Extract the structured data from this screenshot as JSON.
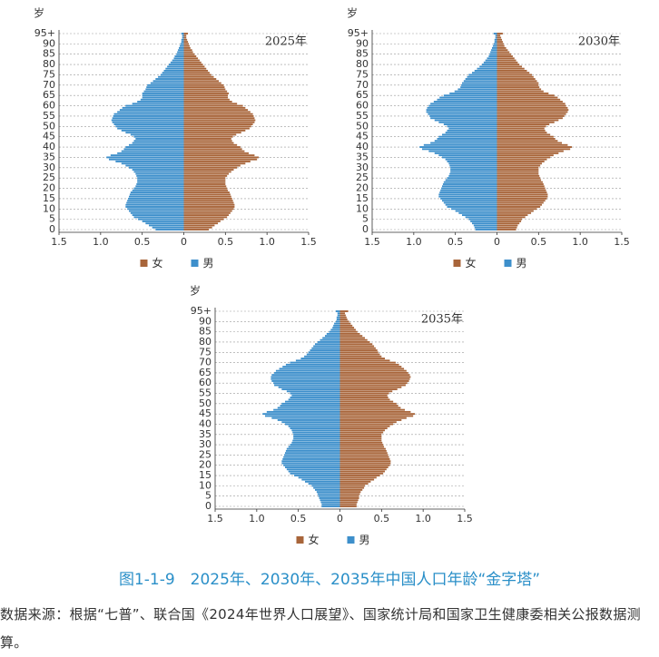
{
  "chart_data": [
    {
      "type": "pyramid",
      "title": "2025年",
      "y_label": "岁",
      "categories": [
        "0",
        null,
        null,
        null,
        null,
        "5",
        null,
        null,
        null,
        null,
        "10",
        null,
        null,
        null,
        null,
        "15",
        null,
        null,
        null,
        null,
        "20",
        null,
        null,
        null,
        null,
        "25",
        null,
        null,
        null,
        null,
        "30",
        null,
        null,
        null,
        null,
        "35",
        null,
        null,
        null,
        null,
        "40",
        null,
        null,
        null,
        null,
        "45",
        null,
        null,
        null,
        null,
        "50",
        null,
        null,
        null,
        null,
        "55",
        null,
        null,
        null,
        null,
        "60",
        null,
        null,
        null,
        null,
        "65",
        null,
        null,
        null,
        null,
        "70",
        null,
        null,
        null,
        null,
        "75",
        null,
        null,
        null,
        null,
        "80",
        null,
        null,
        null,
        null,
        "85",
        null,
        null,
        null,
        null,
        "90",
        null,
        null,
        null,
        null,
        "95+"
      ],
      "xlim": [
        -1.5,
        1.5
      ],
      "xticks": [
        {
          "value": -1.5,
          "label": "1.5"
        },
        {
          "value": -1,
          "label": "1.0"
        },
        {
          "value": -0.5,
          "label": "0.5"
        },
        0,
        0.5,
        {
          "value": 1,
          "label": "1.0"
        },
        1.5
      ],
      "series": [
        {
          "name": "女",
          "color": "#a8653a",
          "side": "right",
          "values": [
            0.3,
            0.34,
            0.37,
            0.41,
            0.44,
            0.48,
            0.52,
            0.54,
            0.56,
            0.58,
            0.6,
            0.61,
            0.61,
            0.6,
            0.59,
            0.58,
            0.57,
            0.56,
            0.55,
            0.53,
            0.52,
            0.51,
            0.5,
            0.5,
            0.5,
            0.5,
            0.52,
            0.54,
            0.57,
            0.6,
            0.64,
            0.68,
            0.74,
            0.8,
            0.88,
            0.9,
            0.85,
            0.78,
            0.73,
            0.7,
            0.68,
            0.64,
            0.6,
            0.58,
            0.57,
            0.59,
            0.63,
            0.69,
            0.74,
            0.79,
            0.81,
            0.83,
            0.85,
            0.86,
            0.85,
            0.84,
            0.83,
            0.8,
            0.77,
            0.74,
            0.71,
            0.64,
            0.58,
            0.55,
            0.53,
            0.53,
            0.54,
            0.52,
            0.5,
            0.49,
            0.48,
            0.45,
            0.42,
            0.39,
            0.36,
            0.33,
            0.31,
            0.29,
            0.27,
            0.25,
            0.23,
            0.21,
            0.19,
            0.17,
            0.15,
            0.13,
            0.11,
            0.1,
            0.08,
            0.07,
            0.06,
            0.05,
            0.04,
            0.03,
            0.03,
            0.05
          ]
        },
        {
          "name": "男",
          "color": "#3d8fcb",
          "side": "left",
          "values": [
            0.34,
            0.38,
            0.42,
            0.46,
            0.5,
            0.55,
            0.6,
            0.62,
            0.64,
            0.66,
            0.68,
            0.7,
            0.7,
            0.69,
            0.68,
            0.67,
            0.66,
            0.65,
            0.64,
            0.62,
            0.6,
            0.58,
            0.57,
            0.56,
            0.56,
            0.56,
            0.57,
            0.58,
            0.6,
            0.62,
            0.66,
            0.7,
            0.75,
            0.82,
            0.9,
            0.93,
            0.88,
            0.8,
            0.75,
            0.72,
            0.7,
            0.66,
            0.62,
            0.6,
            0.58,
            0.6,
            0.64,
            0.7,
            0.75,
            0.8,
            0.82,
            0.84,
            0.86,
            0.87,
            0.86,
            0.85,
            0.84,
            0.8,
            0.77,
            0.74,
            0.7,
            0.62,
            0.56,
            0.52,
            0.5,
            0.5,
            0.5,
            0.48,
            0.46,
            0.45,
            0.44,
            0.4,
            0.37,
            0.34,
            0.31,
            0.28,
            0.26,
            0.24,
            0.22,
            0.2,
            0.18,
            0.16,
            0.14,
            0.12,
            0.11,
            0.09,
            0.08,
            0.07,
            0.06,
            0.05,
            0.04,
            0.03,
            0.03,
            0.02,
            0.02,
            0.03
          ]
        }
      ]
    },
    {
      "type": "pyramid",
      "title": "2030年",
      "y_label": "岁",
      "categories": [
        "0",
        null,
        null,
        null,
        null,
        "5",
        null,
        null,
        null,
        null,
        "10",
        null,
        null,
        null,
        null,
        "15",
        null,
        null,
        null,
        null,
        "20",
        null,
        null,
        null,
        null,
        "25",
        null,
        null,
        null,
        null,
        "30",
        null,
        null,
        null,
        null,
        "35",
        null,
        null,
        null,
        null,
        "40",
        null,
        null,
        null,
        null,
        "45",
        null,
        null,
        null,
        null,
        "50",
        null,
        null,
        null,
        null,
        "55",
        null,
        null,
        null,
        null,
        "60",
        null,
        null,
        null,
        null,
        "65",
        null,
        null,
        null,
        null,
        "70",
        null,
        null,
        null,
        null,
        "75",
        null,
        null,
        null,
        null,
        "80",
        null,
        null,
        null,
        null,
        "85",
        null,
        null,
        null,
        null,
        "90",
        null,
        null,
        null,
        null,
        "95+"
      ],
      "xlim": [
        -1.5,
        1.5
      ],
      "xticks": [
        {
          "value": -1.5,
          "label": "1.5"
        },
        {
          "value": -1,
          "label": "1.0"
        },
        {
          "value": -0.5,
          "label": "0.5"
        },
        0,
        0.5,
        {
          "value": 1,
          "label": "1.0"
        },
        1.5
      ],
      "series": [
        {
          "name": "女",
          "color": "#a8653a",
          "side": "right",
          "values": [
            0.23,
            0.24,
            0.25,
            0.27,
            0.29,
            0.3,
            0.34,
            0.37,
            0.41,
            0.44,
            0.48,
            0.52,
            0.54,
            0.56,
            0.58,
            0.6,
            0.61,
            0.61,
            0.6,
            0.59,
            0.58,
            0.57,
            0.56,
            0.55,
            0.53,
            0.52,
            0.51,
            0.5,
            0.5,
            0.5,
            0.5,
            0.52,
            0.54,
            0.57,
            0.6,
            0.64,
            0.68,
            0.74,
            0.8,
            0.88,
            0.9,
            0.85,
            0.78,
            0.73,
            0.7,
            0.68,
            0.64,
            0.6,
            0.58,
            0.57,
            0.59,
            0.63,
            0.69,
            0.74,
            0.79,
            0.81,
            0.83,
            0.85,
            0.86,
            0.85,
            0.83,
            0.82,
            0.79,
            0.76,
            0.73,
            0.69,
            0.62,
            0.56,
            0.53,
            0.51,
            0.5,
            0.5,
            0.48,
            0.46,
            0.44,
            0.42,
            0.39,
            0.36,
            0.33,
            0.3,
            0.27,
            0.25,
            0.23,
            0.21,
            0.19,
            0.17,
            0.15,
            0.13,
            0.11,
            0.09,
            0.08,
            0.07,
            0.06,
            0.05,
            0.04,
            0.07
          ]
        },
        {
          "name": "男",
          "color": "#3d8fcb",
          "side": "left",
          "values": [
            0.26,
            0.27,
            0.28,
            0.3,
            0.32,
            0.34,
            0.38,
            0.42,
            0.46,
            0.5,
            0.55,
            0.6,
            0.62,
            0.64,
            0.66,
            0.68,
            0.7,
            0.7,
            0.69,
            0.68,
            0.67,
            0.66,
            0.65,
            0.64,
            0.62,
            0.6,
            0.58,
            0.57,
            0.56,
            0.56,
            0.56,
            0.57,
            0.58,
            0.6,
            0.62,
            0.66,
            0.7,
            0.75,
            0.82,
            0.9,
            0.93,
            0.88,
            0.8,
            0.75,
            0.72,
            0.7,
            0.66,
            0.62,
            0.6,
            0.58,
            0.6,
            0.64,
            0.7,
            0.75,
            0.8,
            0.81,
            0.83,
            0.85,
            0.85,
            0.84,
            0.82,
            0.8,
            0.76,
            0.72,
            0.69,
            0.64,
            0.57,
            0.51,
            0.47,
            0.44,
            0.43,
            0.42,
            0.4,
            0.38,
            0.36,
            0.34,
            0.3,
            0.27,
            0.24,
            0.21,
            0.18,
            0.16,
            0.14,
            0.12,
            0.1,
            0.09,
            0.08,
            0.07,
            0.06,
            0.05,
            0.04,
            0.03,
            0.03,
            0.02,
            0.02,
            0.04
          ]
        }
      ]
    },
    {
      "type": "pyramid",
      "title": "2035年",
      "y_label": "岁",
      "categories": [
        "0",
        null,
        null,
        null,
        null,
        "5",
        null,
        null,
        null,
        null,
        "10",
        null,
        null,
        null,
        null,
        "15",
        null,
        null,
        null,
        null,
        "20",
        null,
        null,
        null,
        null,
        "25",
        null,
        null,
        null,
        null,
        "30",
        null,
        null,
        null,
        null,
        "35",
        null,
        null,
        null,
        null,
        "40",
        null,
        null,
        null,
        null,
        "45",
        null,
        null,
        null,
        null,
        "50",
        null,
        null,
        null,
        null,
        "55",
        null,
        null,
        null,
        null,
        "60",
        null,
        null,
        null,
        null,
        "65",
        null,
        null,
        null,
        null,
        "70",
        null,
        null,
        null,
        null,
        "75",
        null,
        null,
        null,
        null,
        "80",
        null,
        null,
        null,
        null,
        "85",
        null,
        null,
        null,
        null,
        "90",
        null,
        null,
        null,
        null,
        "95+"
      ],
      "xlim": [
        -1.5,
        1.5
      ],
      "xticks": [
        {
          "value": -1.5,
          "label": "1.5"
        },
        {
          "value": -1,
          "label": "1.0"
        },
        {
          "value": -0.5,
          "label": "0.5"
        },
        0,
        0.5,
        {
          "value": 1,
          "label": "1.0"
        },
        1.5
      ],
      "series": [
        {
          "name": "女",
          "color": "#a8653a",
          "side": "right",
          "values": [
            0.2,
            0.2,
            0.21,
            0.22,
            0.23,
            0.23,
            0.24,
            0.25,
            0.27,
            0.29,
            0.3,
            0.34,
            0.37,
            0.41,
            0.44,
            0.48,
            0.52,
            0.54,
            0.56,
            0.58,
            0.6,
            0.61,
            0.61,
            0.6,
            0.59,
            0.58,
            0.57,
            0.56,
            0.55,
            0.53,
            0.52,
            0.51,
            0.5,
            0.5,
            0.5,
            0.5,
            0.52,
            0.54,
            0.57,
            0.6,
            0.64,
            0.68,
            0.74,
            0.8,
            0.88,
            0.9,
            0.85,
            0.78,
            0.73,
            0.7,
            0.68,
            0.64,
            0.6,
            0.58,
            0.57,
            0.59,
            0.63,
            0.69,
            0.74,
            0.79,
            0.81,
            0.83,
            0.84,
            0.85,
            0.84,
            0.82,
            0.8,
            0.77,
            0.74,
            0.71,
            0.67,
            0.6,
            0.54,
            0.5,
            0.48,
            0.46,
            0.45,
            0.43,
            0.41,
            0.39,
            0.36,
            0.33,
            0.3,
            0.27,
            0.24,
            0.21,
            0.19,
            0.17,
            0.15,
            0.13,
            0.11,
            0.09,
            0.08,
            0.07,
            0.06,
            0.1
          ]
        },
        {
          "name": "男",
          "color": "#3d8fcb",
          "side": "left",
          "values": [
            0.22,
            0.22,
            0.23,
            0.24,
            0.25,
            0.26,
            0.27,
            0.28,
            0.3,
            0.32,
            0.34,
            0.38,
            0.42,
            0.46,
            0.5,
            0.55,
            0.6,
            0.62,
            0.64,
            0.66,
            0.68,
            0.7,
            0.7,
            0.69,
            0.68,
            0.67,
            0.66,
            0.65,
            0.64,
            0.62,
            0.6,
            0.58,
            0.57,
            0.56,
            0.56,
            0.56,
            0.57,
            0.58,
            0.6,
            0.62,
            0.66,
            0.7,
            0.75,
            0.82,
            0.9,
            0.93,
            0.88,
            0.8,
            0.75,
            0.72,
            0.7,
            0.66,
            0.62,
            0.6,
            0.58,
            0.6,
            0.64,
            0.7,
            0.74,
            0.79,
            0.8,
            0.82,
            0.83,
            0.83,
            0.82,
            0.79,
            0.77,
            0.73,
            0.69,
            0.65,
            0.6,
            0.53,
            0.47,
            0.43,
            0.4,
            0.38,
            0.36,
            0.34,
            0.32,
            0.3,
            0.27,
            0.24,
            0.21,
            0.18,
            0.16,
            0.13,
            0.11,
            0.09,
            0.08,
            0.07,
            0.05,
            0.04,
            0.04,
            0.03,
            0.03,
            0.05
          ]
        }
      ]
    }
  ],
  "caption": "图1-1-9　2025年、2030年、2035年中国人口年龄“金字塔”",
  "source": "数据来源：根据“七普”、联合国《2024年世界人口展望》、国家统计局和国家卫生健康委相关公报数据测算。"
}
